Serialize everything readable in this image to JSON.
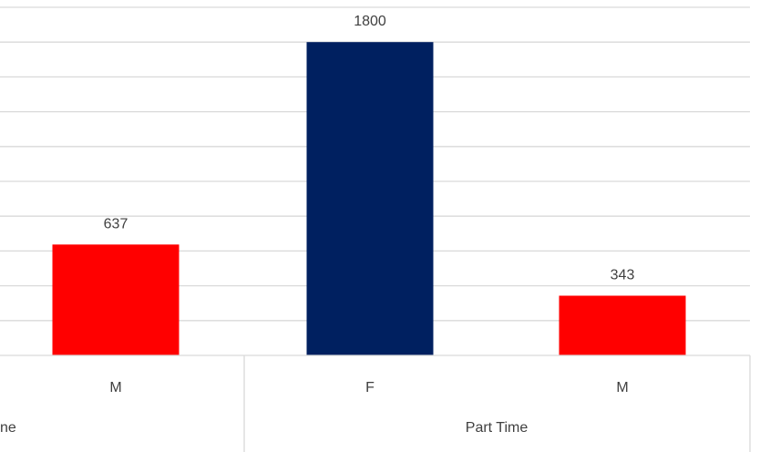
{
  "chart_data": {
    "type": "bar",
    "title": "",
    "xlabel": "",
    "ylabel": "",
    "ylim": [
      0,
      2000
    ],
    "grid": true,
    "legend": "none",
    "categories": [
      "M",
      "F",
      "M"
    ],
    "groups": [
      {
        "label": "ne",
        "members": [
          0
        ]
      },
      {
        "label": "Part Time",
        "members": [
          1,
          2
        ]
      }
    ],
    "values": [
      637,
      1800,
      343
    ],
    "data_labels": [
      "637",
      "1800",
      "343"
    ],
    "bar_colors": [
      "#ff0000",
      "#002060",
      "#ff0000"
    ]
  }
}
